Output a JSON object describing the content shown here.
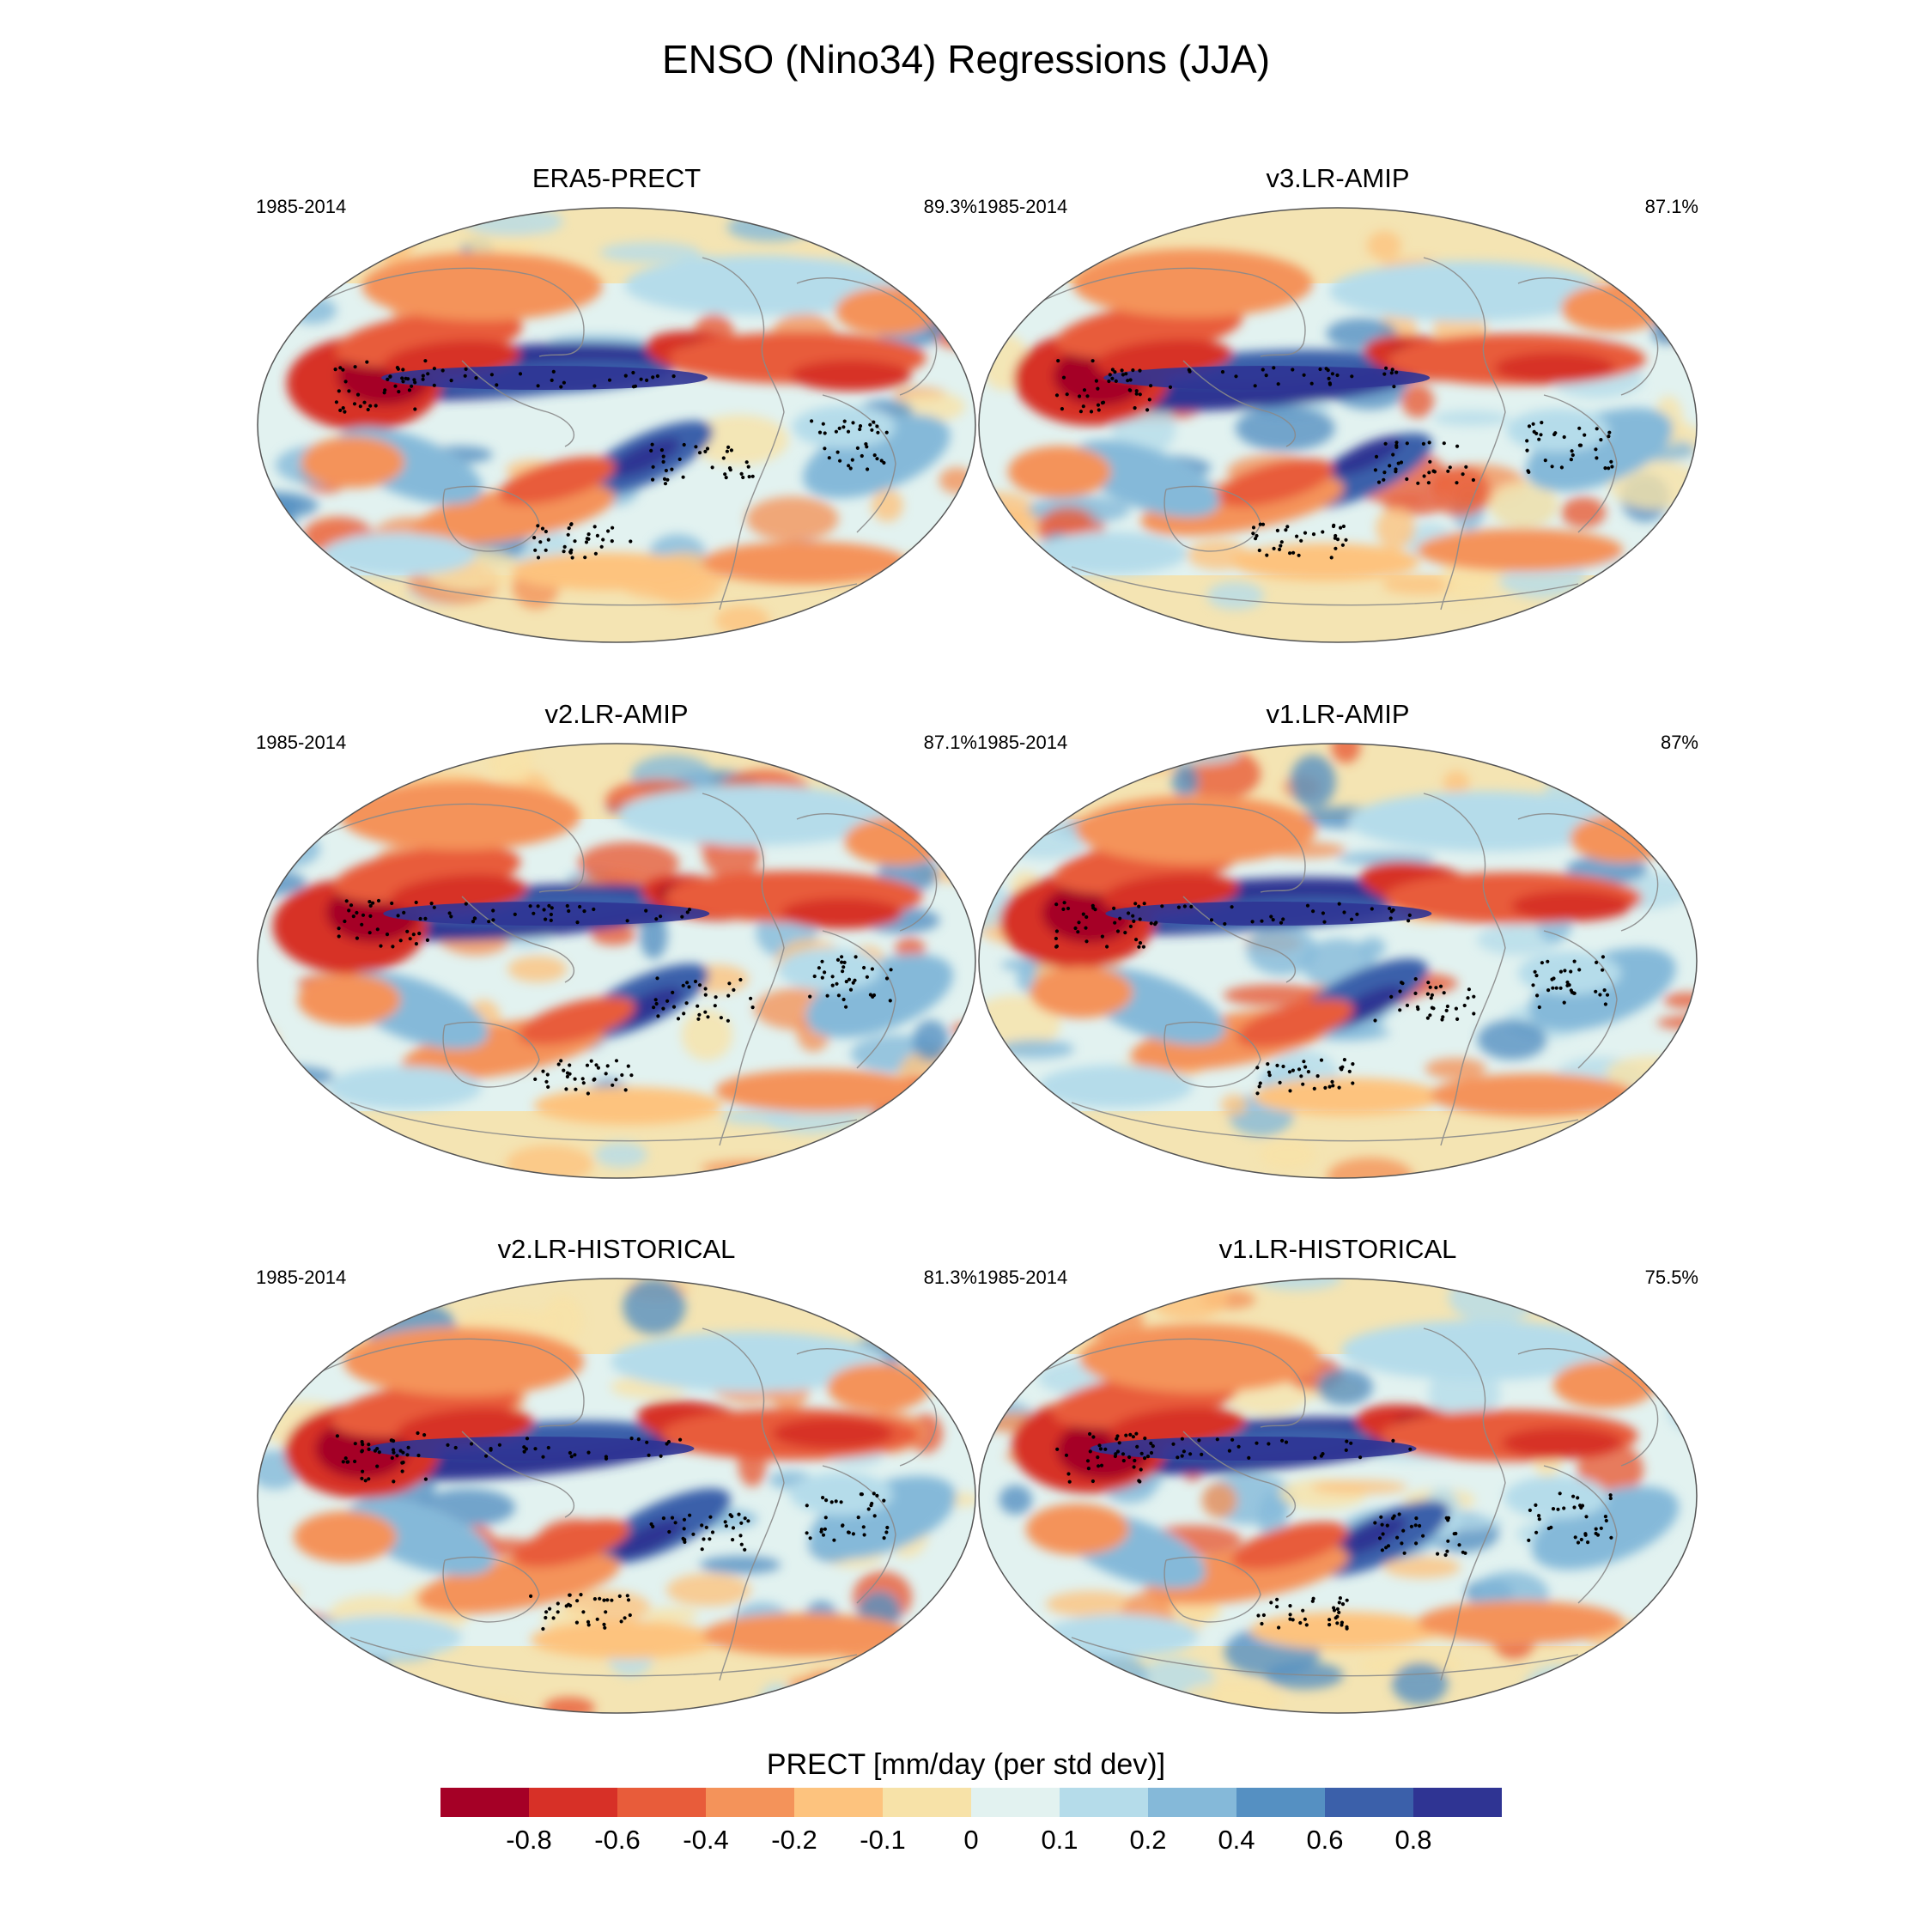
{
  "title": "ENSO (Nino34) Regressions (JJA)",
  "colors": {
    "scale": [
      "#a50026",
      "#d73027",
      "#e85c3a",
      "#f4935a",
      "#fdc37e",
      "#f7e2a8",
      "#e2f2f0",
      "#b5dcea",
      "#85b9d9",
      "#5590c2",
      "#3b60aa",
      "#2f3493"
    ],
    "coast": "#8a8a8a",
    "stipple": "#000000"
  },
  "panels": [
    {
      "title": "ERA5-PRECT",
      "period": "1985-2014",
      "pct": "89.3%"
    },
    {
      "title": "v3.LR-AMIP",
      "period": "1985-2014",
      "pct": "87.1%"
    },
    {
      "title": "v2.LR-AMIP",
      "period": "1985-2014",
      "pct": "87.1%"
    },
    {
      "title": "v1.LR-AMIP",
      "period": "1985-2014",
      "pct": "87%"
    },
    {
      "title": "v2.LR-HISTORICAL",
      "period": "1985-2014",
      "pct": "81.3%"
    },
    {
      "title": "v1.LR-HISTORICAL",
      "period": "1985-2014",
      "pct": "75.5%"
    }
  ],
  "colorbar": {
    "title": "PRECT [mm/day (per std dev)]",
    "labels": [
      "-0.8",
      "-0.6",
      "-0.4",
      "-0.2",
      "-0.1",
      "0",
      "0.1",
      "0.2",
      "0.4",
      "0.6",
      "0.8"
    ]
  }
}
